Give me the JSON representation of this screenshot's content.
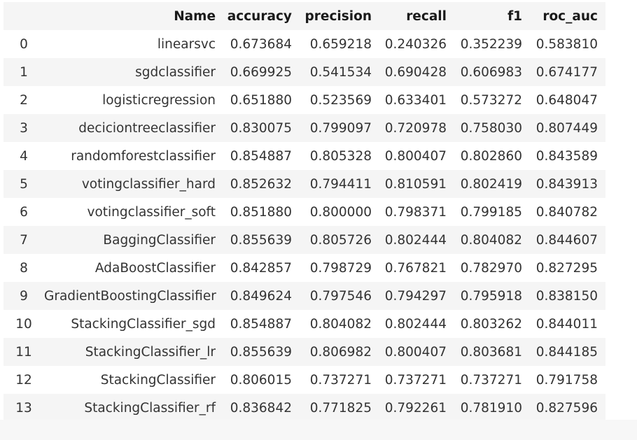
{
  "table": {
    "columns": [
      "",
      "Name",
      "accuracy",
      "precision",
      "recall",
      "f1",
      "roc_auc"
    ],
    "rows": [
      {
        "index": "0",
        "name": "linearsvc",
        "accuracy": "0.673684",
        "precision": "0.659218",
        "recall": "0.240326",
        "f1": "0.352239",
        "roc_auc": "0.583810"
      },
      {
        "index": "1",
        "name": "sgdclassifier",
        "accuracy": "0.669925",
        "precision": "0.541534",
        "recall": "0.690428",
        "f1": "0.606983",
        "roc_auc": "0.674177"
      },
      {
        "index": "2",
        "name": "logisticregression",
        "accuracy": "0.651880",
        "precision": "0.523569",
        "recall": "0.633401",
        "f1": "0.573272",
        "roc_auc": "0.648047"
      },
      {
        "index": "3",
        "name": "deciciontreeclassifier",
        "accuracy": "0.830075",
        "precision": "0.799097",
        "recall": "0.720978",
        "f1": "0.758030",
        "roc_auc": "0.807449"
      },
      {
        "index": "4",
        "name": "randomforestclassifier",
        "accuracy": "0.854887",
        "precision": "0.805328",
        "recall": "0.800407",
        "f1": "0.802860",
        "roc_auc": "0.843589"
      },
      {
        "index": "5",
        "name": "votingclassifier_hard",
        "accuracy": "0.852632",
        "precision": "0.794411",
        "recall": "0.810591",
        "f1": "0.802419",
        "roc_auc": "0.843913"
      },
      {
        "index": "6",
        "name": "votingclassifier_soft",
        "accuracy": "0.851880",
        "precision": "0.800000",
        "recall": "0.798371",
        "f1": "0.799185",
        "roc_auc": "0.840782"
      },
      {
        "index": "7",
        "name": "BaggingClassifier",
        "accuracy": "0.855639",
        "precision": "0.805726",
        "recall": "0.802444",
        "f1": "0.804082",
        "roc_auc": "0.844607"
      },
      {
        "index": "8",
        "name": "AdaBoostClassifier",
        "accuracy": "0.842857",
        "precision": "0.798729",
        "recall": "0.767821",
        "f1": "0.782970",
        "roc_auc": "0.827295"
      },
      {
        "index": "9",
        "name": "GradientBoostingClassifier",
        "accuracy": "0.849624",
        "precision": "0.797546",
        "recall": "0.794297",
        "f1": "0.795918",
        "roc_auc": "0.838150"
      },
      {
        "index": "10",
        "name": "StackingClassifier_sgd",
        "accuracy": "0.854887",
        "precision": "0.804082",
        "recall": "0.802444",
        "f1": "0.803262",
        "roc_auc": "0.844011"
      },
      {
        "index": "11",
        "name": "StackingClassifier_lr",
        "accuracy": "0.855639",
        "precision": "0.806982",
        "recall": "0.800407",
        "f1": "0.803681",
        "roc_auc": "0.844185"
      },
      {
        "index": "12",
        "name": "StackingClassifier",
        "accuracy": "0.806015",
        "precision": "0.737271",
        "recall": "0.737271",
        "f1": "0.737271",
        "roc_auc": "0.791758"
      },
      {
        "index": "13",
        "name": "StackingClassifier_rf",
        "accuracy": "0.836842",
        "precision": "0.771825",
        "recall": "0.792261",
        "f1": "0.781910",
        "roc_auc": "0.827596"
      }
    ]
  },
  "colors": {
    "stripe": "#f5f5f5",
    "background": "#ffffff"
  }
}
